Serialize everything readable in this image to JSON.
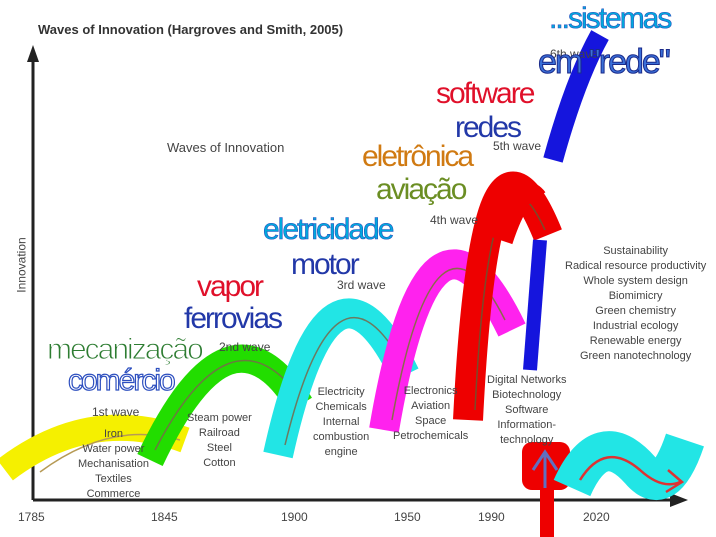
{
  "title": "Waves of Innovation (Hargroves and Smith, 2005)",
  "subtitle": "Waves of Innovation",
  "y_axis_label": "Innovation",
  "x_ticks": [
    "1785",
    "1845",
    "1900",
    "1950",
    "1990",
    "2020"
  ],
  "waves": [
    {
      "label": "1st wave",
      "items": [
        "Iron",
        "Water power",
        "Mechanisation",
        "Textiles",
        "Commerce"
      ]
    },
    {
      "label": "2nd wave",
      "items": [
        "Steam power",
        "Railroad",
        "Steel",
        "Cotton"
      ]
    },
    {
      "label": "3rd wave",
      "items": [
        "Electricity",
        "Chemicals",
        "Internal",
        "combustion",
        "engine"
      ]
    },
    {
      "label": "4th wave",
      "items": [
        "Electronics",
        "Aviation",
        "Space",
        "Petrochemicals"
      ]
    },
    {
      "label": "5th wave",
      "items": [
        "Digital Networks",
        "Biotechnology",
        "Software",
        "Information-",
        "technology"
      ]
    },
    {
      "label": "6th wave",
      "items": [
        "Sustainability",
        "Radical resource productivity",
        "Whole system design",
        "Biomimicry",
        "Green chemistry",
        "Industrial ecology",
        "Renewable energy",
        "Green nanotechnology"
      ]
    }
  ],
  "overlay_labels": {
    "w1": [
      "mecanização",
      "comércio"
    ],
    "w2": [
      "vapor",
      "ferrovias"
    ],
    "w3": [
      "eletricidade",
      "motor"
    ],
    "w4": [
      "eletrônica",
      "aviação"
    ],
    "w5": [
      "software",
      "redes"
    ],
    "w6": [
      "...sistemas",
      "em \"rede\""
    ]
  },
  "colors": {
    "w1": "#f5f000",
    "w2": "#22dd00",
    "w3": "#22e5e5",
    "w4": "#ff22ee",
    "w5": "#ee0000",
    "w6": "#1515dd",
    "axis": "#222222"
  }
}
